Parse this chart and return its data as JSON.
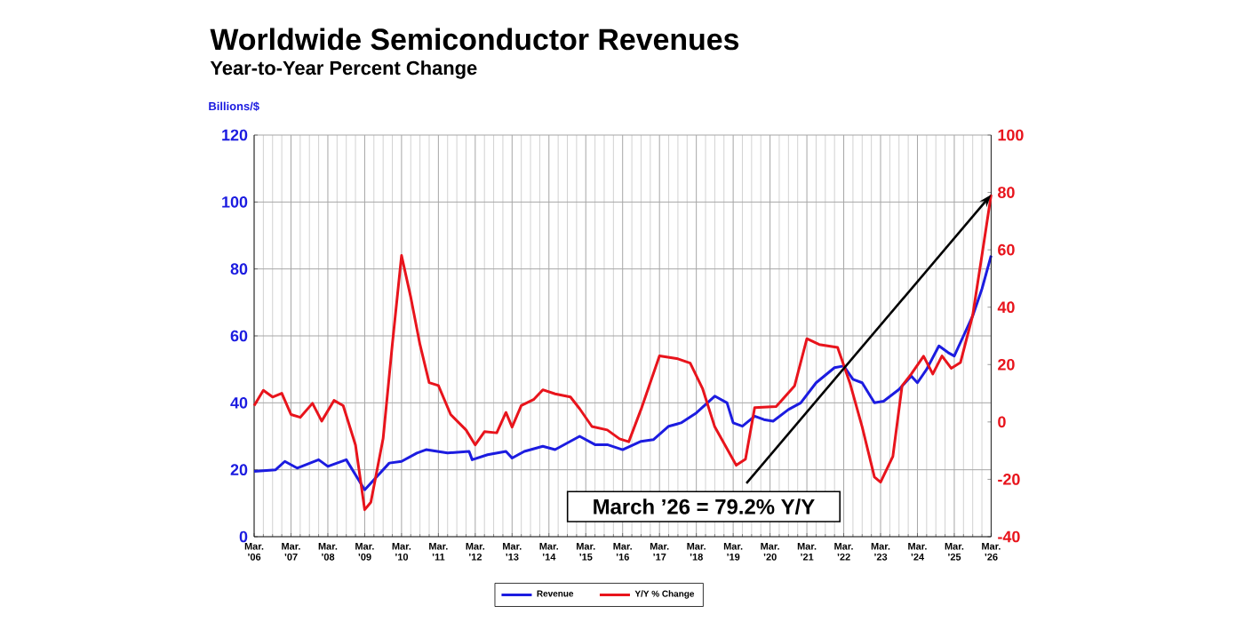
{
  "chart_data": {
    "type": "line",
    "title": "Worldwide Semiconductor Revenues",
    "subtitle": "Year-to-Year Percent Change",
    "ylabel": "Billions/$",
    "xlim": [
      "2006-03",
      "2026-03"
    ],
    "xticks": [
      {
        "value": "2006-03",
        "label": "Mar. ’06"
      },
      {
        "value": "2007-03",
        "label": "Mar. ’07"
      },
      {
        "value": "2008-03",
        "label": "Mar. ’08"
      },
      {
        "value": "2009-03",
        "label": "Mar. ’09"
      },
      {
        "value": "2010-03",
        "label": "Mar. ’10"
      },
      {
        "value": "2011-03",
        "label": "Mar. ’11"
      },
      {
        "value": "2012-03",
        "label": "Mar. ’12"
      },
      {
        "value": "2013-03",
        "label": "Mar. ’13"
      },
      {
        "value": "2014-03",
        "label": "Mar. ’14"
      },
      {
        "value": "2015-03",
        "label": "Mar. ’15"
      },
      {
        "value": "2016-03",
        "label": "Mar. ’16"
      },
      {
        "value": "2017-03",
        "label": "Mar. ’17"
      },
      {
        "value": "2018-03",
        "label": "Mar. ’18"
      },
      {
        "value": "2019-03",
        "label": "Mar. ’19"
      },
      {
        "value": "2020-03",
        "label": "Mar. ’20"
      },
      {
        "value": "2021-03",
        "label": "Mar. ’21"
      },
      {
        "value": "2022-03",
        "label": "Mar. ’22"
      },
      {
        "value": "2023-03",
        "label": "Mar. ’23"
      },
      {
        "value": "2024-03",
        "label": "Mar. ’24"
      },
      {
        "value": "2025-03",
        "label": "Mar. ’25"
      },
      {
        "value": "2026-03",
        "label": "Mar. ’26"
      }
    ],
    "ylim": [
      0,
      120
    ],
    "yticks": [
      0,
      20,
      40,
      60,
      80,
      100,
      120
    ],
    "y2lim": [
      -40,
      100
    ],
    "y2ticks": [
      -40,
      -20,
      0,
      20,
      40,
      60,
      80,
      100
    ],
    "grid": true,
    "legend": "bottom",
    "series": [
      {
        "name": "Revenue",
        "color": "#1c1ce0",
        "x": [
          "2006-03",
          "2006-10",
          "2007-01",
          "2007-05",
          "2007-12",
          "2008-03",
          "2008-09",
          "2009-03",
          "2009-07",
          "2009-11",
          "2010-03",
          "2010-08",
          "2010-11",
          "2011-06",
          "2012-01",
          "2012-02",
          "2012-07",
          "2013-01",
          "2013-03",
          "2013-07",
          "2014-01",
          "2014-05",
          "2014-09",
          "2015-01",
          "2015-06",
          "2015-10",
          "2016-03",
          "2016-09",
          "2017-01",
          "2017-06",
          "2017-10",
          "2018-03",
          "2018-09",
          "2019-01",
          "2019-03",
          "2019-06",
          "2019-10",
          "2020-01",
          "2020-04",
          "2020-09",
          "2021-01",
          "2021-06",
          "2021-12",
          "2022-03",
          "2022-06",
          "2022-09",
          "2023-01",
          "2023-04",
          "2023-09",
          "2024-01",
          "2024-03",
          "2024-06",
          "2024-10",
          "2025-01",
          "2025-03",
          "2025-06",
          "2025-09",
          "2025-12",
          "2026-03"
        ],
        "values": [
          19.5,
          20,
          22.5,
          20.5,
          23,
          21,
          23,
          14,
          18,
          22,
          22.5,
          25,
          26,
          25,
          25.5,
          23,
          24.5,
          25.5,
          23.5,
          25.5,
          27,
          26,
          28,
          30,
          27.5,
          27.5,
          26,
          28.5,
          29,
          33,
          34,
          37,
          42,
          40,
          34,
          33,
          36,
          35,
          34.5,
          38,
          40,
          46,
          50.5,
          51,
          47,
          46,
          40,
          40.5,
          44,
          48,
          46,
          50,
          57,
          55,
          54,
          60,
          66,
          74,
          84
        ]
      },
      {
        "name": "Y/Y % Change",
        "color": "#e8141c",
        "axis": "y2",
        "x": [
          "2006-03",
          "2006-06",
          "2006-09",
          "2006-12",
          "2007-03",
          "2007-06",
          "2007-10",
          "2008-01",
          "2008-05",
          "2008-08",
          "2008-12",
          "2009-03",
          "2009-05",
          "2009-09",
          "2009-12",
          "2010-03",
          "2010-06",
          "2010-09",
          "2010-12",
          "2011-03",
          "2011-07",
          "2011-12",
          "2012-03",
          "2012-06",
          "2012-10",
          "2013-01",
          "2013-03",
          "2013-06",
          "2013-10",
          "2014-01",
          "2014-05",
          "2014-10",
          "2015-01",
          "2015-05",
          "2015-10",
          "2016-02",
          "2016-05",
          "2016-09",
          "2017-03",
          "2017-09",
          "2018-01",
          "2018-05",
          "2018-09",
          "2019-04",
          "2019-07",
          "2019-10",
          "2020-05",
          "2020-11",
          "2021-03",
          "2021-07",
          "2022-01",
          "2022-05",
          "2022-09",
          "2023-01",
          "2023-03",
          "2023-07",
          "2023-10",
          "2024-01",
          "2024-05",
          "2024-08",
          "2024-11",
          "2025-02",
          "2025-05",
          "2025-09",
          "2025-12",
          "2026-03"
        ],
        "values": [
          5.7,
          11,
          8.7,
          10,
          2.6,
          1.6,
          6.5,
          0.3,
          7.5,
          5.7,
          -8,
          -30.6,
          -28,
          -5.8,
          27,
          58,
          43.5,
          27,
          13.7,
          12.7,
          2.6,
          -2.8,
          -8,
          -3.4,
          -3.8,
          3.3,
          -1.8,
          5.7,
          7.8,
          11.2,
          9.8,
          8.7,
          4.6,
          -1.6,
          -2.8,
          -5.9,
          -6.9,
          4.4,
          23,
          22,
          20.5,
          11.7,
          -1.7,
          -15.1,
          -13,
          5,
          5.4,
          12.6,
          29,
          27,
          26,
          13.6,
          -1.7,
          -19.2,
          -21,
          -12,
          12.6,
          16.7,
          22.9,
          16.7,
          23,
          18.7,
          20.7,
          37.2,
          58,
          79.2
        ]
      }
    ],
    "annotations": [
      "March ’26 = 79.2% Y/Y"
    ]
  }
}
